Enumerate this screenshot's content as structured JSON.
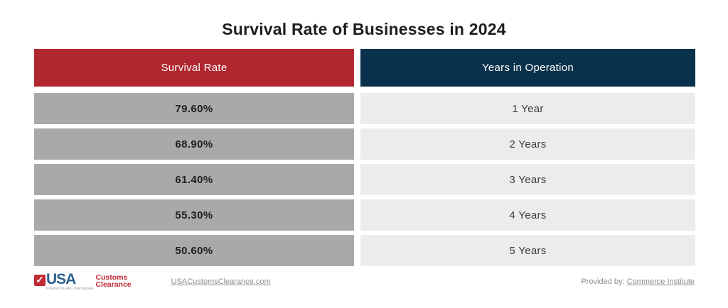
{
  "page": {
    "title": "Survival Rate of Businesses in 2024"
  },
  "table": {
    "header": {
      "survival_rate": "Survival Rate",
      "years_in_operation": "Years in Operation"
    },
    "rows": [
      {
        "rate": "79.60%",
        "years": "1 Year"
      },
      {
        "rate": "68.90%",
        "years": "2 Years"
      },
      {
        "rate": "61.40%",
        "years": "3 Years"
      },
      {
        "rate": "55.30%",
        "years": "4 Years"
      },
      {
        "rate": "50.60%",
        "years": "5 Years"
      }
    ]
  },
  "chart_data": {
    "type": "table",
    "title": "Survival Rate of Businesses in 2024",
    "columns": [
      "Survival Rate",
      "Years in Operation"
    ],
    "rows": [
      [
        "79.60%",
        "1 Year"
      ],
      [
        "68.90%",
        "2 Years"
      ],
      [
        "61.40%",
        "3 Years"
      ],
      [
        "55.30%",
        "4 Years"
      ],
      [
        "50.60%",
        "5 Years"
      ]
    ],
    "survival_rate_values_pct": [
      79.6,
      68.9,
      61.4,
      55.3,
      50.6
    ],
    "years_in_operation_values": [
      1,
      2,
      3,
      4,
      5
    ]
  },
  "footer": {
    "logo": {
      "checkmark_icon": "✓",
      "usa_text": "USA",
      "customs_text": "Customs",
      "clearance_text": "Clearance",
      "powered_by_text": "Powered by AFC International"
    },
    "website_link": "USACustomsClearance.com",
    "provided_by_label": "Provided by: ",
    "provided_by_link": "Commerce Institute"
  },
  "colors": {
    "header_red": "#B0272F",
    "header_navy": "#0A314B",
    "row_gray": "#A9A9A9",
    "row_light_gray": "#ECECEC",
    "logo_red": "#C22B33",
    "logo_blue": "#2D5E8E",
    "footer_text_gray": "#8C8C8C"
  }
}
